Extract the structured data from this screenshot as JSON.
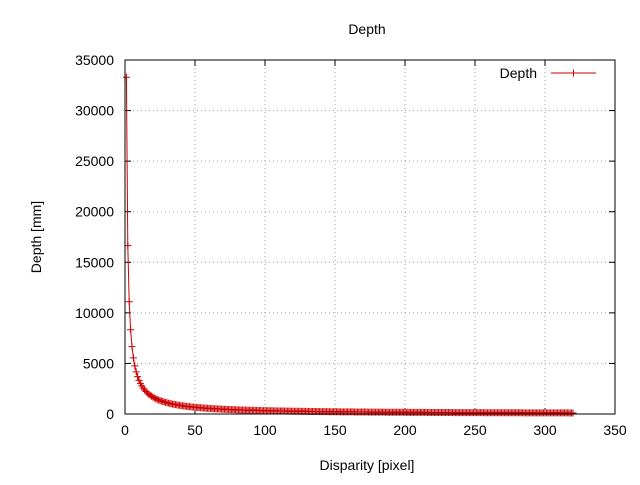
{
  "chart_data": {
    "type": "line",
    "title": "Depth",
    "xlabel": "Disparity [pixel]",
    "ylabel": "Depth [mm]",
    "xlim": [
      0,
      350
    ],
    "ylim": [
      0,
      35000
    ],
    "x_ticks": [
      0,
      50,
      100,
      150,
      200,
      250,
      300,
      350
    ],
    "y_ticks": [
      0,
      5000,
      10000,
      15000,
      20000,
      25000,
      30000,
      35000
    ],
    "grid": true,
    "legend_position": "top-right",
    "marker": "plus",
    "series": [
      {
        "name": "Depth",
        "color": "#cc0000",
        "x_start": 1,
        "x_end": 320,
        "x_step": 1,
        "depth_times_disparity": 33300
      }
    ]
  }
}
